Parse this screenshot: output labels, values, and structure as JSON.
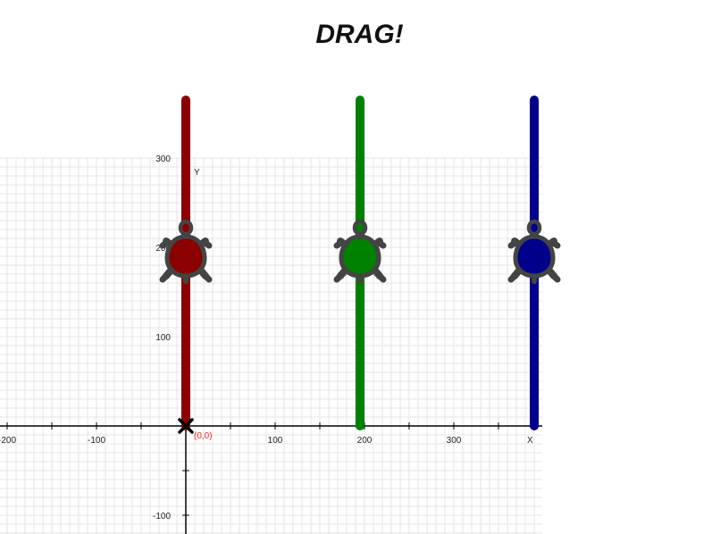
{
  "title": "DRAG!",
  "axes": {
    "x_label": "X",
    "y_label": "Y",
    "origin_label": "(0,0)",
    "origin_color": "#ff2222",
    "x_ticks": [
      {
        "value": -200,
        "label": "-200"
      },
      {
        "value": -100,
        "label": "-100"
      },
      {
        "value": 100,
        "label": "100"
      },
      {
        "value": 200,
        "label": "200"
      },
      {
        "value": 300,
        "label": "300"
      }
    ],
    "y_ticks": [
      {
        "value": 300,
        "label": "300"
      },
      {
        "value": 200,
        "label": "200"
      },
      {
        "value": 100,
        "label": "100"
      },
      {
        "value": -100,
        "label": "-100"
      }
    ]
  },
  "colors": {
    "grid_line": "#e6e6e6",
    "axis": "#000000",
    "turtle_outline": "#444444"
  },
  "turtles": [
    {
      "name": "red",
      "x": 0,
      "y": 190,
      "color": "#8b0000",
      "trail_from": 0,
      "trail_to": 365
    },
    {
      "name": "green",
      "x": 195,
      "y": 190,
      "color": "#008000",
      "trail_from": 0,
      "trail_to": 365
    },
    {
      "name": "blue",
      "x": 390,
      "y": 190,
      "color": "#00008b",
      "trail_from": 0,
      "trail_to": 365
    }
  ]
}
